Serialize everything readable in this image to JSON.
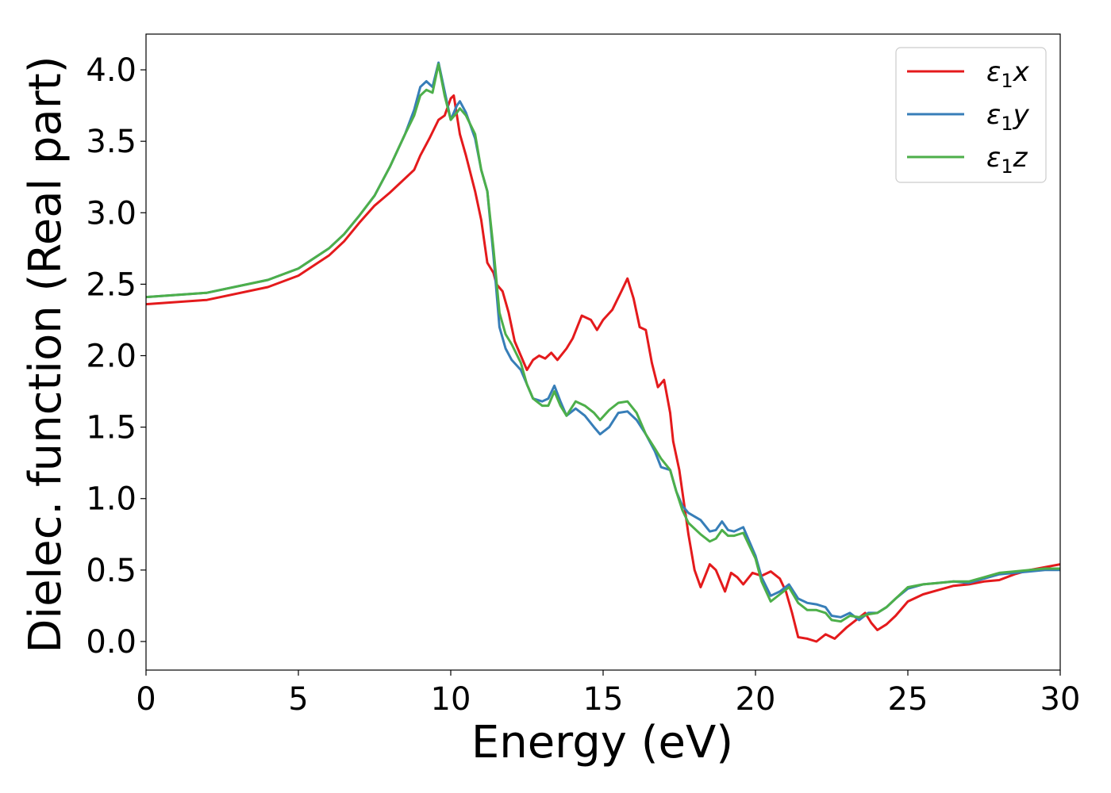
{
  "chart_data": {
    "type": "line",
    "title": "",
    "xlabel": "Energy (eV)",
    "ylabel": "Dielec. function (Real part)",
    "xlim": [
      0,
      30
    ],
    "ylim": [
      -0.2,
      4.25
    ],
    "xticks": [
      0,
      5,
      10,
      15,
      20,
      25,
      30
    ],
    "xtick_labels": [
      "0",
      "5",
      "10",
      "15",
      "20",
      "25",
      "30"
    ],
    "yticks": [
      0.0,
      0.5,
      1.0,
      1.5,
      2.0,
      2.5,
      3.0,
      3.5,
      4.0
    ],
    "ytick_labels": [
      "0.0",
      "0.5",
      "1.0",
      "1.5",
      "2.0",
      "2.5",
      "3.0",
      "3.5",
      "4.0"
    ],
    "grid": false,
    "legend_position": "top-right",
    "series": [
      {
        "name": "ε₁x",
        "color": "#e41a1c",
        "points": [
          [
            0,
            2.36
          ],
          [
            2,
            2.39
          ],
          [
            4,
            2.48
          ],
          [
            5,
            2.56
          ],
          [
            6,
            2.7
          ],
          [
            6.5,
            2.8
          ],
          [
            7,
            2.93
          ],
          [
            7.5,
            3.05
          ],
          [
            8,
            3.14
          ],
          [
            8.5,
            3.24
          ],
          [
            8.8,
            3.3
          ],
          [
            9,
            3.4
          ],
          [
            9.3,
            3.52
          ],
          [
            9.6,
            3.65
          ],
          [
            9.8,
            3.68
          ],
          [
            10,
            3.8
          ],
          [
            10.1,
            3.82
          ],
          [
            10.3,
            3.55
          ],
          [
            10.5,
            3.4
          ],
          [
            10.8,
            3.15
          ],
          [
            11,
            2.95
          ],
          [
            11.2,
            2.65
          ],
          [
            11.4,
            2.58
          ],
          [
            11.5,
            2.5
          ],
          [
            11.7,
            2.45
          ],
          [
            11.9,
            2.3
          ],
          [
            12.1,
            2.1
          ],
          [
            12.3,
            2.0
          ],
          [
            12.5,
            1.9
          ],
          [
            12.7,
            1.97
          ],
          [
            12.9,
            2.0
          ],
          [
            13.1,
            1.98
          ],
          [
            13.3,
            2.02
          ],
          [
            13.5,
            1.97
          ],
          [
            13.8,
            2.05
          ],
          [
            14.0,
            2.12
          ],
          [
            14.3,
            2.28
          ],
          [
            14.6,
            2.25
          ],
          [
            14.8,
            2.18
          ],
          [
            15.0,
            2.25
          ],
          [
            15.3,
            2.32
          ],
          [
            15.6,
            2.45
          ],
          [
            15.8,
            2.54
          ],
          [
            16.0,
            2.4
          ],
          [
            16.2,
            2.2
          ],
          [
            16.4,
            2.18
          ],
          [
            16.6,
            1.95
          ],
          [
            16.8,
            1.78
          ],
          [
            17.0,
            1.83
          ],
          [
            17.2,
            1.6
          ],
          [
            17.3,
            1.4
          ],
          [
            17.5,
            1.2
          ],
          [
            17.8,
            0.75
          ],
          [
            18.0,
            0.5
          ],
          [
            18.2,
            0.38
          ],
          [
            18.5,
            0.54
          ],
          [
            18.7,
            0.5
          ],
          [
            19.0,
            0.35
          ],
          [
            19.2,
            0.48
          ],
          [
            19.4,
            0.45
          ],
          [
            19.6,
            0.4
          ],
          [
            19.9,
            0.48
          ],
          [
            20.2,
            0.46
          ],
          [
            20.5,
            0.49
          ],
          [
            20.8,
            0.44
          ],
          [
            21.0,
            0.35
          ],
          [
            21.2,
            0.2
          ],
          [
            21.4,
            0.03
          ],
          [
            21.7,
            0.02
          ],
          [
            22.0,
            0.0
          ],
          [
            22.3,
            0.05
          ],
          [
            22.6,
            0.02
          ],
          [
            23.0,
            0.1
          ],
          [
            23.3,
            0.15
          ],
          [
            23.6,
            0.2
          ],
          [
            23.8,
            0.13
          ],
          [
            24.0,
            0.08
          ],
          [
            24.3,
            0.12
          ],
          [
            24.6,
            0.18
          ],
          [
            25,
            0.28
          ],
          [
            25.5,
            0.33
          ],
          [
            26,
            0.36
          ],
          [
            26.5,
            0.39
          ],
          [
            27,
            0.4
          ],
          [
            27.5,
            0.42
          ],
          [
            28,
            0.43
          ],
          [
            28.5,
            0.47
          ],
          [
            29,
            0.5
          ],
          [
            29.5,
            0.52
          ],
          [
            30,
            0.54
          ]
        ]
      },
      {
        "name": "ε₁y",
        "color": "#377eb8",
        "points": [
          [
            0,
            2.41
          ],
          [
            2,
            2.44
          ],
          [
            4,
            2.53
          ],
          [
            5,
            2.61
          ],
          [
            6,
            2.75
          ],
          [
            6.5,
            2.85
          ],
          [
            7,
            2.98
          ],
          [
            7.5,
            3.12
          ],
          [
            8,
            3.32
          ],
          [
            8.5,
            3.55
          ],
          [
            8.8,
            3.72
          ],
          [
            9.0,
            3.88
          ],
          [
            9.2,
            3.92
          ],
          [
            9.4,
            3.88
          ],
          [
            9.6,
            4.05
          ],
          [
            9.8,
            3.85
          ],
          [
            10.0,
            3.65
          ],
          [
            10.2,
            3.75
          ],
          [
            10.3,
            3.78
          ],
          [
            10.5,
            3.7
          ],
          [
            10.8,
            3.52
          ],
          [
            11.0,
            3.3
          ],
          [
            11.2,
            3.15
          ],
          [
            11.4,
            2.7
          ],
          [
            11.6,
            2.2
          ],
          [
            11.8,
            2.05
          ],
          [
            12.0,
            1.97
          ],
          [
            12.3,
            1.9
          ],
          [
            12.5,
            1.8
          ],
          [
            12.7,
            1.7
          ],
          [
            13.0,
            1.68
          ],
          [
            13.2,
            1.7
          ],
          [
            13.4,
            1.79
          ],
          [
            13.6,
            1.68
          ],
          [
            13.8,
            1.58
          ],
          [
            14.1,
            1.63
          ],
          [
            14.4,
            1.58
          ],
          [
            14.7,
            1.5
          ],
          [
            14.9,
            1.45
          ],
          [
            15.2,
            1.5
          ],
          [
            15.5,
            1.6
          ],
          [
            15.8,
            1.61
          ],
          [
            16.1,
            1.55
          ],
          [
            16.4,
            1.45
          ],
          [
            16.7,
            1.33
          ],
          [
            16.9,
            1.22
          ],
          [
            17.2,
            1.2
          ],
          [
            17.4,
            1.05
          ],
          [
            17.6,
            0.95
          ],
          [
            17.8,
            0.9
          ],
          [
            18.2,
            0.85
          ],
          [
            18.5,
            0.77
          ],
          [
            18.7,
            0.78
          ],
          [
            18.9,
            0.84
          ],
          [
            19.1,
            0.78
          ],
          [
            19.3,
            0.77
          ],
          [
            19.6,
            0.8
          ],
          [
            19.8,
            0.7
          ],
          [
            20.0,
            0.6
          ],
          [
            20.2,
            0.45
          ],
          [
            20.5,
            0.32
          ],
          [
            20.8,
            0.35
          ],
          [
            21.1,
            0.4
          ],
          [
            21.4,
            0.3
          ],
          [
            21.7,
            0.27
          ],
          [
            22.0,
            0.26
          ],
          [
            22.3,
            0.24
          ],
          [
            22.5,
            0.18
          ],
          [
            22.8,
            0.17
          ],
          [
            23.1,
            0.2
          ],
          [
            23.4,
            0.15
          ],
          [
            23.7,
            0.2
          ],
          [
            24.0,
            0.2
          ],
          [
            24.3,
            0.24
          ],
          [
            24.6,
            0.3
          ],
          [
            25,
            0.37
          ],
          [
            25.5,
            0.4
          ],
          [
            26,
            0.41
          ],
          [
            26.5,
            0.42
          ],
          [
            27,
            0.41
          ],
          [
            27.5,
            0.44
          ],
          [
            28,
            0.47
          ],
          [
            28.5,
            0.48
          ],
          [
            29,
            0.49
          ],
          [
            29.5,
            0.5
          ],
          [
            30,
            0.5
          ]
        ]
      },
      {
        "name": "ε₁z",
        "color": "#4daf4a",
        "points": [
          [
            0,
            2.41
          ],
          [
            2,
            2.44
          ],
          [
            4,
            2.53
          ],
          [
            5,
            2.61
          ],
          [
            6,
            2.75
          ],
          [
            6.5,
            2.85
          ],
          [
            7,
            2.98
          ],
          [
            7.5,
            3.12
          ],
          [
            8,
            3.32
          ],
          [
            8.5,
            3.55
          ],
          [
            8.8,
            3.68
          ],
          [
            9.0,
            3.82
          ],
          [
            9.2,
            3.86
          ],
          [
            9.4,
            3.84
          ],
          [
            9.6,
            4.04
          ],
          [
            9.8,
            3.82
          ],
          [
            10.0,
            3.65
          ],
          [
            10.2,
            3.7
          ],
          [
            10.3,
            3.73
          ],
          [
            10.5,
            3.68
          ],
          [
            10.8,
            3.55
          ],
          [
            11.0,
            3.3
          ],
          [
            11.2,
            3.15
          ],
          [
            11.4,
            2.75
          ],
          [
            11.6,
            2.3
          ],
          [
            11.8,
            2.15
          ],
          [
            12.0,
            2.08
          ],
          [
            12.3,
            1.95
          ],
          [
            12.5,
            1.8
          ],
          [
            12.7,
            1.7
          ],
          [
            13.0,
            1.65
          ],
          [
            13.2,
            1.65
          ],
          [
            13.4,
            1.75
          ],
          [
            13.6,
            1.65
          ],
          [
            13.8,
            1.58
          ],
          [
            14.1,
            1.68
          ],
          [
            14.4,
            1.65
          ],
          [
            14.7,
            1.6
          ],
          [
            14.9,
            1.55
          ],
          [
            15.2,
            1.62
          ],
          [
            15.5,
            1.67
          ],
          [
            15.8,
            1.68
          ],
          [
            16.1,
            1.6
          ],
          [
            16.4,
            1.45
          ],
          [
            16.7,
            1.35
          ],
          [
            16.9,
            1.28
          ],
          [
            17.2,
            1.2
          ],
          [
            17.4,
            1.05
          ],
          [
            17.6,
            0.92
          ],
          [
            17.8,
            0.83
          ],
          [
            18.2,
            0.75
          ],
          [
            18.5,
            0.7
          ],
          [
            18.7,
            0.72
          ],
          [
            18.9,
            0.78
          ],
          [
            19.1,
            0.74
          ],
          [
            19.3,
            0.74
          ],
          [
            19.6,
            0.76
          ],
          [
            19.8,
            0.67
          ],
          [
            20.0,
            0.58
          ],
          [
            20.2,
            0.42
          ],
          [
            20.5,
            0.28
          ],
          [
            20.8,
            0.33
          ],
          [
            21.1,
            0.38
          ],
          [
            21.4,
            0.27
          ],
          [
            21.7,
            0.22
          ],
          [
            22.0,
            0.22
          ],
          [
            22.3,
            0.2
          ],
          [
            22.5,
            0.15
          ],
          [
            22.8,
            0.14
          ],
          [
            23.1,
            0.18
          ],
          [
            23.4,
            0.17
          ],
          [
            23.7,
            0.19
          ],
          [
            24.0,
            0.2
          ],
          [
            24.3,
            0.24
          ],
          [
            24.6,
            0.3
          ],
          [
            25,
            0.38
          ],
          [
            25.5,
            0.4
          ],
          [
            26,
            0.41
          ],
          [
            26.5,
            0.42
          ],
          [
            27,
            0.42
          ],
          [
            27.5,
            0.45
          ],
          [
            28,
            0.48
          ],
          [
            28.5,
            0.49
          ],
          [
            29,
            0.5
          ],
          [
            29.5,
            0.51
          ],
          [
            30,
            0.51
          ]
        ]
      }
    ]
  },
  "legend": {
    "items": [
      {
        "label": "ε",
        "sub": "1",
        "axis": "x"
      },
      {
        "label": "ε",
        "sub": "1",
        "axis": "y"
      },
      {
        "label": "ε",
        "sub": "1",
        "axis": "z"
      }
    ]
  }
}
